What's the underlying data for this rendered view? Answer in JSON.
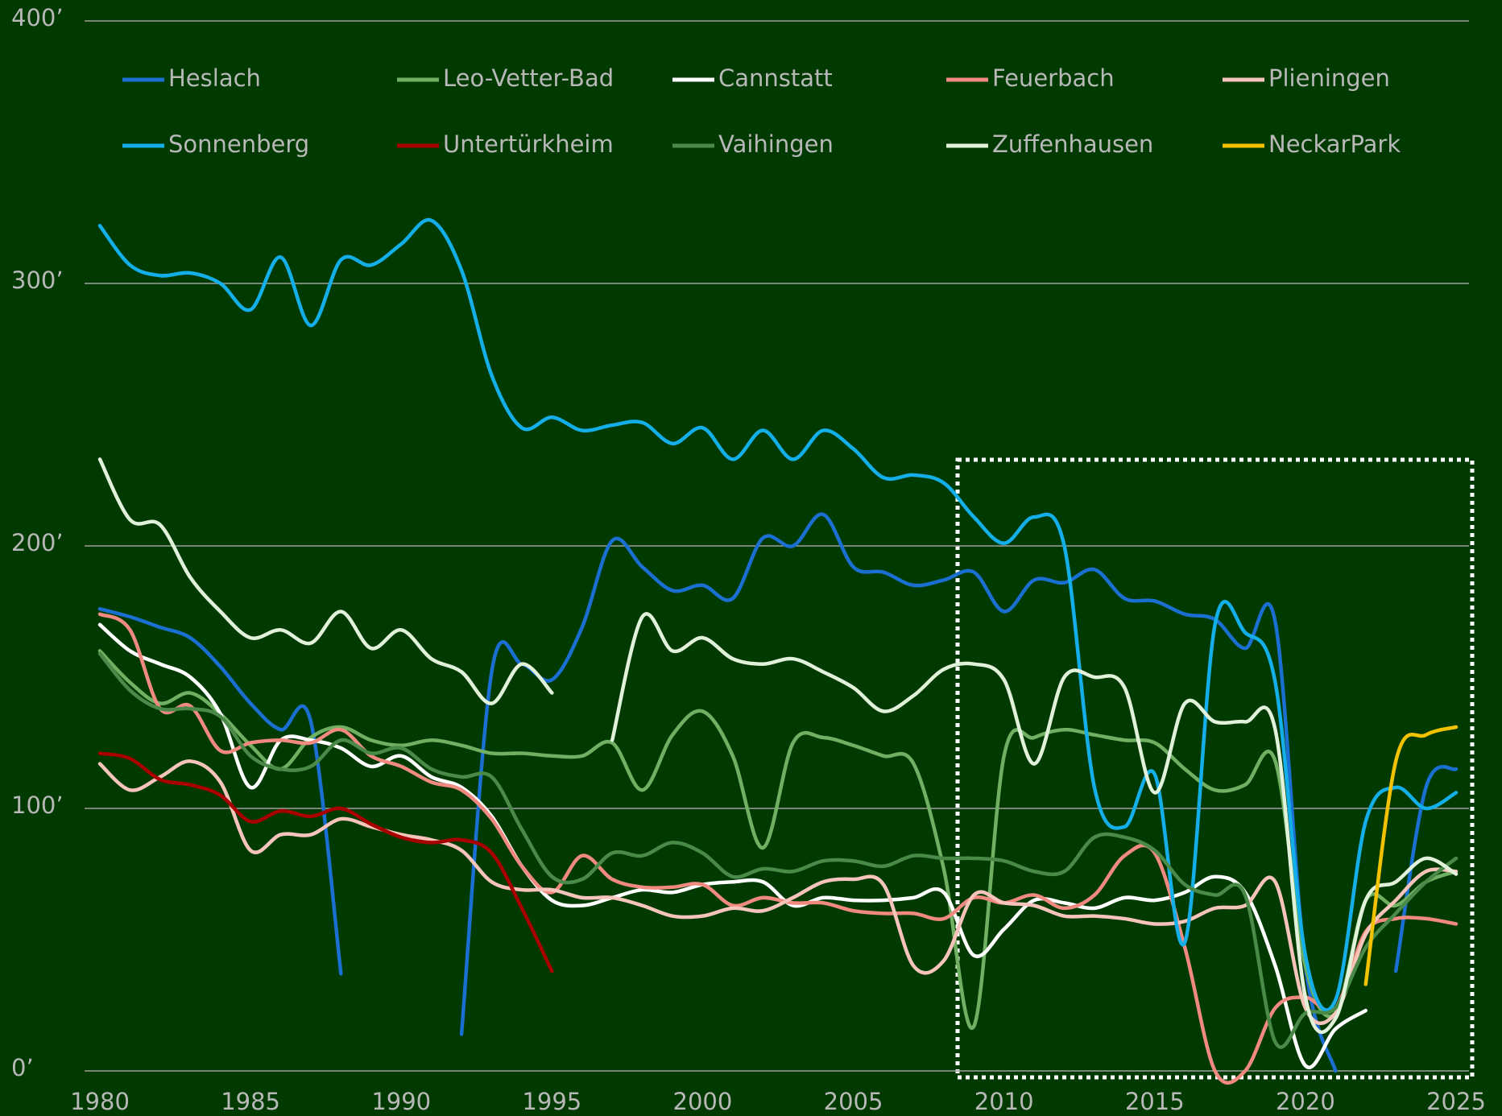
{
  "chart_data": {
    "type": "line",
    "x": [
      1980,
      1981,
      1982,
      1983,
      1984,
      1985,
      1986,
      1987,
      1988,
      1989,
      1990,
      1991,
      1992,
      1993,
      1994,
      1995,
      1996,
      1997,
      1998,
      1999,
      2000,
      2001,
      2002,
      2003,
      2004,
      2005,
      2006,
      2007,
      2008,
      2009,
      2010,
      2011,
      2012,
      2013,
      2014,
      2015,
      2016,
      2017,
      2018,
      2019,
      2020,
      2021,
      2022,
      2023,
      2024,
      2025
    ],
    "xlim": [
      1980,
      2025
    ],
    "xticks": [
      1980,
      1985,
      1990,
      1995,
      2000,
      2005,
      2010,
      2015,
      2020,
      2025
    ],
    "ylim": [
      0,
      400
    ],
    "yticks": [
      {
        "value": 0,
        "label": "0’"
      },
      {
        "value": 100,
        "label": "100’"
      },
      {
        "value": 200,
        "label": "200’"
      },
      {
        "value": 300,
        "label": "300’"
      },
      {
        "value": 400,
        "label": "400’"
      }
    ],
    "grid": true,
    "legend": "top",
    "series": [
      {
        "name": "Heslach",
        "color": "#1a6fd0",
        "values": [
          176,
          173,
          169,
          165,
          154,
          140,
          130,
          133,
          37,
          null,
          null,
          null,
          14,
          152,
          155,
          149,
          169,
          202,
          192,
          183,
          185,
          180,
          203,
          200,
          212,
          192,
          190,
          185,
          187,
          190,
          175,
          187,
          186,
          191,
          180,
          179,
          174,
          172,
          161,
          171,
          40,
          0,
          null,
          38,
          108,
          115
        ]
      },
      {
        "name": "Leo-Vetter-Bad",
        "color": "#6fb063",
        "values": [
          160,
          148,
          140,
          144,
          136,
          124,
          115,
          127,
          131,
          126,
          124,
          126,
          124,
          121,
          121,
          120,
          120,
          125,
          107,
          128,
          137,
          120,
          85,
          125,
          127,
          124,
          120,
          117,
          77,
          17,
          120,
          127,
          130,
          128,
          126,
          125,
          115,
          107,
          109,
          118,
          40,
          22,
          65,
          63,
          72,
          76
        ]
      },
      {
        "name": "Cannstatt",
        "color": "#ffffff",
        "values": [
          170,
          160,
          155,
          150,
          136,
          108,
          126,
          126,
          123,
          116,
          120,
          112,
          108,
          97,
          78,
          65,
          63,
          66,
          69,
          68,
          71,
          72,
          72,
          63,
          66,
          65,
          65,
          66,
          68,
          44,
          54,
          65,
          64,
          62,
          66,
          65,
          68,
          74,
          68,
          40,
          2,
          16,
          23,
          null,
          null,
          null
        ]
      },
      {
        "name": "Feuerbach",
        "color": "#f08a80",
        "values": [
          174,
          168,
          138,
          139,
          122,
          125,
          126,
          125,
          130,
          120,
          116,
          110,
          107,
          96,
          78,
          68,
          82,
          73,
          70,
          70,
          71,
          63,
          66,
          64,
          64,
          61,
          60,
          60,
          58,
          66,
          64,
          67,
          62,
          67,
          82,
          83,
          47,
          0,
          0,
          24,
          28,
          24,
          53,
          58,
          58,
          56
        ]
      },
      {
        "name": "Plieningen",
        "color": "#f6c4ba",
        "values": [
          117,
          107,
          112,
          118,
          110,
          84,
          90,
          90,
          96,
          93,
          90,
          88,
          84,
          72,
          69,
          69,
          66,
          66,
          63,
          59,
          59,
          62,
          61,
          66,
          72,
          73,
          71,
          40,
          42,
          67,
          64,
          63,
          59,
          59,
          58,
          56,
          57,
          62,
          63,
          72,
          24,
          22,
          52,
          65,
          76,
          76
        ]
      },
      {
        "name": "Sonnenberg",
        "color": "#14aee8",
        "values": [
          322,
          307,
          303,
          304,
          300,
          290,
          310,
          284,
          309,
          307,
          315,
          324,
          305,
          265,
          245,
          249,
          244,
          246,
          247,
          239,
          245,
          233,
          244,
          233,
          244,
          237,
          226,
          227,
          224,
          211,
          201,
          211,
          200,
          108,
          93,
          113,
          49,
          170,
          167,
          148,
          44,
          27,
          95,
          108,
          100,
          106
        ]
      },
      {
        "name": "Untertürkheim",
        "color": "#a80000",
        "values": [
          121,
          119,
          111,
          109,
          105,
          95,
          99,
          97,
          100,
          94,
          89,
          87,
          88,
          83,
          62,
          38,
          null,
          null,
          null,
          null,
          null,
          null,
          null,
          null,
          null,
          null,
          null,
          null,
          null,
          null,
          null,
          null,
          null,
          null,
          null,
          null,
          null,
          null,
          null,
          null,
          null,
          null,
          null,
          null,
          null,
          null
        ]
      },
      {
        "name": "Vaihingen",
        "color": "#4a8a48",
        "values": [
          159,
          145,
          138,
          138,
          135,
          120,
          115,
          116,
          126,
          121,
          123,
          115,
          112,
          112,
          92,
          74,
          73,
          83,
          82,
          87,
          83,
          74,
          77,
          76,
          80,
          80,
          78,
          82,
          81,
          81,
          80,
          76,
          76,
          89,
          89,
          84,
          71,
          67,
          67,
          11,
          22,
          24,
          47,
          60,
          72,
          81
        ]
      },
      {
        "name": "Zuffenhausen",
        "color": "#e2f2da",
        "values": [
          233,
          210,
          208,
          188,
          175,
          165,
          168,
          163,
          175,
          161,
          168,
          157,
          152,
          140,
          155,
          144,
          null,
          126,
          173,
          160,
          165,
          157,
          155,
          157,
          152,
          146,
          137,
          143,
          153,
          155,
          149,
          117,
          150,
          150,
          146,
          106,
          140,
          133,
          133,
          130,
          28,
          20,
          65,
          72,
          81,
          75
        ]
      },
      {
        "name": "NeckarPark",
        "color": "#f2c200",
        "values": [
          null,
          null,
          null,
          null,
          null,
          null,
          null,
          null,
          null,
          null,
          null,
          null,
          null,
          null,
          null,
          null,
          null,
          null,
          null,
          null,
          null,
          null,
          null,
          null,
          null,
          null,
          null,
          null,
          null,
          null,
          null,
          null,
          null,
          null,
          null,
          null,
          null,
          null,
          null,
          null,
          null,
          null,
          33,
          118,
          128,
          131
        ]
      }
    ]
  }
}
